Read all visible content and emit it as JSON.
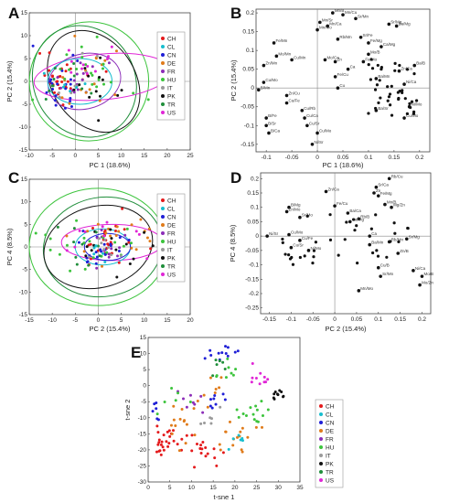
{
  "colors": {
    "CH": "#e41a1c",
    "CL": "#17becf",
    "CN": "#1f1fd6",
    "DE": "#e07b1a",
    "FR": "#8c2db8",
    "HU": "#3cc43c",
    "IT": "#9a9a9a",
    "PK": "#111111",
    "TR": "#1f8e3a",
    "US": "#e026d6"
  },
  "chart_data": [
    {
      "panel": "A",
      "type": "scatter",
      "xlabel": "PC 1 (18.6%)",
      "ylabel": "PC 2 (15.4%)",
      "xlim": [
        -10,
        25
      ],
      "ylim": [
        -15,
        15
      ],
      "xticks": [
        "-10",
        "-5",
        "0",
        "5",
        "10",
        "15",
        "20",
        "25"
      ],
      "yticks": [
        "-15",
        "-10",
        "-5",
        "0",
        "5",
        "10",
        "15"
      ],
      "legend": [
        "CH",
        "CL",
        "CN",
        "DE",
        "FR",
        "HU",
        "IT",
        "PK",
        "TR",
        "US"
      ],
      "legend_position": "right-inside"
    },
    {
      "panel": "B",
      "type": "scatter",
      "xlabel": "PC 1 (18.6%)",
      "ylabel": "PC 2 (15.4%)",
      "xlim": [
        -0.12,
        0.22
      ],
      "ylim": [
        -0.17,
        0.21
      ],
      "xticks": [
        "-0.1",
        "-0.05",
        "0",
        "0.05",
        "0.1",
        "0.15",
        "0.2"
      ],
      "yticks": [
        "-0.15",
        "-0.1",
        "-0.05",
        "0",
        "0.05",
        "0.1",
        "0.15",
        "0.2"
      ],
      "loadings": [
        {
          "label": "Mn/Cu",
          "x": 0.05,
          "y": 0.195
        },
        {
          "label": "Sr/Mn",
          "x": 0.075,
          "y": 0.185
        },
        {
          "label": "Mn/Ca",
          "x": 0.02,
          "y": 0.165
        },
        {
          "label": "Mn/B",
          "x": 0.03,
          "y": 0.2
        },
        {
          "label": "Mn/Sr",
          "x": 0.005,
          "y": 0.175
        },
        {
          "label": "Mn/Mo",
          "x": 0.0,
          "y": 0.155
        },
        {
          "label": "Fe/Mn",
          "x": -0.085,
          "y": 0.12
        },
        {
          "label": "Rb/Mn",
          "x": 0.04,
          "y": 0.13
        },
        {
          "label": "Sr/Fe",
          "x": 0.085,
          "y": 0.135
        },
        {
          "label": "Mo/Mn",
          "x": -0.08,
          "y": 0.085
        },
        {
          "label": "Zn/Mn",
          "x": -0.105,
          "y": 0.06
        },
        {
          "label": "Fe/Mg",
          "x": 0.1,
          "y": 0.12
        },
        {
          "label": "Ca/Mg",
          "x": 0.125,
          "y": 0.11
        },
        {
          "label": "Sr/Mg",
          "x": 0.14,
          "y": 0.17
        },
        {
          "label": "Ba/Mg",
          "x": 0.155,
          "y": 0.165
        },
        {
          "label": "Mo/B",
          "x": 0.1,
          "y": 0.09
        },
        {
          "label": "Mo/Ca",
          "x": 0.015,
          "y": 0.075
        },
        {
          "label": "Fe/Mo",
          "x": 0.09,
          "y": 0.07
        },
        {
          "label": "Cu/Mn",
          "x": -0.05,
          "y": 0.075
        },
        {
          "label": "Zn",
          "x": 0.035,
          "y": 0.07
        },
        {
          "label": "Cu/Mo",
          "x": -0.105,
          "y": 0.015
        },
        {
          "label": "Ca",
          "x": 0.06,
          "y": 0.05
        },
        {
          "label": "Fe/Cu",
          "x": 0.035,
          "y": 0.03
        },
        {
          "label": "Cu",
          "x": 0.04,
          "y": 0.0
        },
        {
          "label": "Ba/Mn",
          "x": 0.115,
          "y": 0.025
        },
        {
          "label": "Ba/B",
          "x": 0.19,
          "y": 0.06
        },
        {
          "label": "Zn/Ca",
          "x": 0.16,
          "y": 0.045
        },
        {
          "label": "B/Mn",
          "x": -0.115,
          "y": -0.005
        },
        {
          "label": "Zn/Cu",
          "x": -0.06,
          "y": -0.02
        },
        {
          "label": "Cu/Fe",
          "x": -0.06,
          "y": -0.04
        },
        {
          "label": "Cu/Rb",
          "x": -0.03,
          "y": -0.06
        },
        {
          "label": "Cu/Ca",
          "x": -0.025,
          "y": -0.08
        },
        {
          "label": "Cu/Sr",
          "x": -0.02,
          "y": -0.1
        },
        {
          "label": "B/Fe",
          "x": -0.1,
          "y": -0.08
        },
        {
          "label": "B/Sr",
          "x": -0.1,
          "y": -0.1
        },
        {
          "label": "B/Ca",
          "x": -0.095,
          "y": -0.12
        },
        {
          "label": "Cu/Mo",
          "x": 0.0,
          "y": -0.12
        },
        {
          "label": "Ni/Sr",
          "x": -0.01,
          "y": -0.15
        },
        {
          "label": "Ni/Ca",
          "x": 0.17,
          "y": 0.01
        },
        {
          "label": "Ba/Sr",
          "x": 0.115,
          "y": -0.06
        },
        {
          "label": "Cu/Mo",
          "x": 0.17,
          "y": -0.08
        },
        {
          "label": "Ni/Mo",
          "x": 0.18,
          "y": -0.05
        }
      ]
    },
    {
      "panel": "C",
      "type": "scatter",
      "xlabel": "PC 2 (15.4%)",
      "ylabel": "PC 4 (8.5%)",
      "xlim": [
        -15,
        20
      ],
      "ylim": [
        -15,
        15
      ],
      "xticks": [
        "-15",
        "-10",
        "-5",
        "0",
        "5",
        "10",
        "15",
        "20"
      ],
      "yticks": [
        "-15",
        "-10",
        "-5",
        "0",
        "5",
        "10",
        "15"
      ],
      "legend": [
        "CH",
        "CL",
        "CN",
        "DE",
        "FR",
        "HU",
        "IT",
        "PK",
        "TR",
        "US"
      ],
      "legend_position": "right-inside"
    },
    {
      "panel": "D",
      "type": "scatter",
      "xlabel": "PC 2 (15.4%)",
      "ylabel": "PC 4 (8.5%)",
      "xlim": [
        -0.17,
        0.22
      ],
      "ylim": [
        -0.27,
        0.22
      ],
      "xticks": [
        "-0.15",
        "-0.1",
        "-0.05",
        "0",
        "0.05",
        "0.1",
        "0.15",
        "0.2"
      ],
      "yticks": [
        "-0.25",
        "-0.2",
        "-0.15",
        "-0.1",
        "-0.05",
        "0",
        "0.05",
        "0.1",
        "0.15",
        "0.2"
      ],
      "loadings": [
        {
          "label": "Rb/Cu",
          "x": 0.125,
          "y": 0.2
        },
        {
          "label": "Sr/Ca",
          "x": 0.095,
          "y": 0.17
        },
        {
          "label": "Zn",
          "x": 0.09,
          "y": 0.15
        },
        {
          "label": "Fe/Mg",
          "x": 0.1,
          "y": 0.14
        },
        {
          "label": "Zn/Ca",
          "x": -0.02,
          "y": 0.155
        },
        {
          "label": "Fe/Cu",
          "x": 0.0,
          "y": 0.105
        },
        {
          "label": "B/Mg",
          "x": -0.105,
          "y": 0.1
        },
        {
          "label": "Zn/Mo",
          "x": -0.11,
          "y": 0.085
        },
        {
          "label": "Mn/B",
          "x": 0.115,
          "y": 0.11
        },
        {
          "label": "Mg/Zn",
          "x": 0.13,
          "y": 0.1
        },
        {
          "label": "Sr/Mo",
          "x": -0.08,
          "y": 0.065
        },
        {
          "label": "Ba/Ca",
          "x": 0.03,
          "y": 0.08
        },
        {
          "label": "Rb/B",
          "x": 0.055,
          "y": 0.06
        },
        {
          "label": "Ca/Mg",
          "x": 0.035,
          "y": 0.05
        },
        {
          "label": "Ni/Sr",
          "x": -0.155,
          "y": 0.0
        },
        {
          "label": "Cu/Mo",
          "x": -0.105,
          "y": 0.005
        },
        {
          "label": "Cu/Fe",
          "x": -0.08,
          "y": -0.015
        },
        {
          "label": "Cu/Sr",
          "x": -0.1,
          "y": -0.04
        },
        {
          "label": "Ni/Mo",
          "x": -0.06,
          "y": -0.05
        },
        {
          "label": "Rb/Mn",
          "x": 0.125,
          "y": -0.02
        },
        {
          "label": "Sr/Mg",
          "x": 0.165,
          "y": -0.01
        },
        {
          "label": "Ba/Mn",
          "x": 0.08,
          "y": -0.03
        },
        {
          "label": "Zn/B",
          "x": 0.145,
          "y": -0.06
        },
        {
          "label": "Ca",
          "x": 0.08,
          "y": 0.0
        },
        {
          "label": "Cu/B",
          "x": 0.1,
          "y": -0.11
        },
        {
          "label": "Sr/Mn",
          "x": 0.105,
          "y": -0.14
        },
        {
          "label": "Mn/Mo",
          "x": 0.055,
          "y": -0.19
        },
        {
          "label": "Ni/Ca",
          "x": 0.18,
          "y": -0.12
        },
        {
          "label": "Mo/B",
          "x": 0.2,
          "y": -0.14
        },
        {
          "label": "Mo/Zn",
          "x": 0.195,
          "y": -0.17
        }
      ]
    },
    {
      "panel": "E",
      "type": "scatter",
      "xlabel": "t-sne 1",
      "ylabel": "t-sne 2",
      "xlim": [
        0,
        35
      ],
      "ylim": [
        -30,
        15
      ],
      "xticks": [
        "0",
        "5",
        "10",
        "15",
        "20",
        "25",
        "30",
        "35"
      ],
      "yticks": [
        "-30",
        "-25",
        "-20",
        "-15",
        "-10",
        "-5",
        "0",
        "5",
        "10",
        "15"
      ],
      "legend": [
        "CH",
        "CL",
        "CN",
        "DE",
        "FR",
        "HU",
        "IT",
        "PK",
        "TR",
        "US"
      ],
      "legend_position": "outside-right"
    }
  ],
  "panel_letters": [
    "A",
    "B",
    "C",
    "D",
    "E"
  ]
}
